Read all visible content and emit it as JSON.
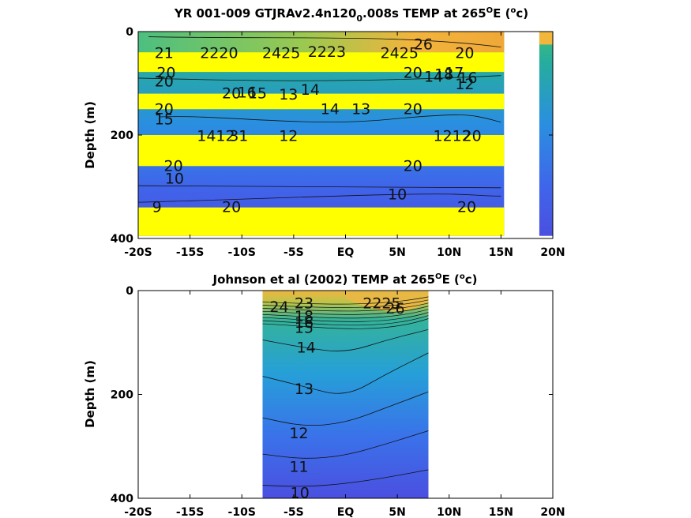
{
  "chart_data": [
    {
      "type": "contour",
      "title": "YR 001-009 GTJRAv2.4n120",
      "title_sub": "0",
      "title_tail": ".008s TEMP at 265",
      "title_deg": "O",
      "title_unit": "E (",
      "title_unit_sup": "o",
      "title_end": "c)",
      "ylabel": "Depth (m)",
      "xlabel": "",
      "xlim": [
        -20,
        20
      ],
      "ylim": [
        400,
        0
      ],
      "xticks": [
        -20,
        -15,
        -10,
        -5,
        0,
        5,
        10,
        15,
        20
      ],
      "xtick_labels": [
        "-20S",
        "-15S",
        "-10S",
        "-5S",
        "EQ",
        "5N",
        "10N",
        "15N",
        "20N"
      ],
      "yticks": [
        0,
        200,
        400
      ],
      "ytick_labels": [
        "0",
        "200",
        "400"
      ],
      "colors": {
        "warm": "#f2b63c",
        "mid": "#2bb09a",
        "cool": "#3a78e6",
        "deep": "#4a4fe0",
        "artifact": "#ffff00"
      },
      "bands": [
        {
          "y0": 0,
          "y1": 40,
          "kind": "field"
        },
        {
          "y0": 40,
          "y1": 78,
          "kind": "artifact"
        },
        {
          "y0": 78,
          "y1": 120,
          "kind": "field"
        },
        {
          "y0": 120,
          "y1": 150,
          "kind": "artifact"
        },
        {
          "y0": 150,
          "y1": 200,
          "kind": "field"
        },
        {
          "y0": 200,
          "y1": 260,
          "kind": "artifact"
        },
        {
          "y0": 260,
          "y1": 340,
          "kind": "field"
        },
        {
          "y0": 340,
          "y1": 395,
          "kind": "artifact"
        }
      ],
      "contour_labels": [
        {
          "x": -17.5,
          "y": 42,
          "text": "21"
        },
        {
          "x": -12.2,
          "y": 42,
          "text": "2220"
        },
        {
          "x": -6.2,
          "y": 42,
          "text": "2425"
        },
        {
          "x": -1.8,
          "y": 40,
          "text": "2223"
        },
        {
          "x": 5.2,
          "y": 42,
          "text": "2425"
        },
        {
          "x": 7.5,
          "y": 25,
          "text": "26"
        },
        {
          "x": 11.5,
          "y": 42,
          "text": "20"
        },
        {
          "x": -17.3,
          "y": 80,
          "text": "20"
        },
        {
          "x": 6.5,
          "y": 80,
          "text": "20"
        },
        {
          "x": 9.5,
          "y": 83,
          "text": "18"
        },
        {
          "x": 8.5,
          "y": 88,
          "text": "14"
        },
        {
          "x": 10.5,
          "y": 80,
          "text": "17"
        },
        {
          "x": 11.8,
          "y": 90,
          "text": "16"
        },
        {
          "x": -17.5,
          "y": 97,
          "text": "20"
        },
        {
          "x": -11,
          "y": 120,
          "text": "20"
        },
        {
          "x": -9.5,
          "y": 118,
          "text": "16"
        },
        {
          "x": -8.5,
          "y": 120,
          "text": "15"
        },
        {
          "x": -5.5,
          "y": 122,
          "text": "13"
        },
        {
          "x": -3.4,
          "y": 113,
          "text": "14"
        },
        {
          "x": 11.5,
          "y": 102,
          "text": "12"
        },
        {
          "x": -17.5,
          "y": 150,
          "text": "20"
        },
        {
          "x": -17.5,
          "y": 170,
          "text": "15"
        },
        {
          "x": -1.5,
          "y": 150,
          "text": "14"
        },
        {
          "x": 1.5,
          "y": 150,
          "text": "13"
        },
        {
          "x": 6.5,
          "y": 150,
          "text": "20"
        },
        {
          "x": -12.5,
          "y": 202,
          "text": "1412"
        },
        {
          "x": -10.3,
          "y": 202,
          "text": "31"
        },
        {
          "x": -5.5,
          "y": 202,
          "text": "12"
        },
        {
          "x": 10.3,
          "y": 202,
          "text": "1212"
        },
        {
          "x": 12.2,
          "y": 202,
          "text": "20"
        },
        {
          "x": -16.6,
          "y": 260,
          "text": "20"
        },
        {
          "x": 6.5,
          "y": 260,
          "text": "20"
        },
        {
          "x": -16.5,
          "y": 285,
          "text": "10"
        },
        {
          "x": 5,
          "y": 315,
          "text": "10"
        },
        {
          "x": -18.2,
          "y": 340,
          "text": "9"
        },
        {
          "x": -11,
          "y": 340,
          "text": "20"
        },
        {
          "x": 11.7,
          "y": 340,
          "text": "20"
        }
      ]
    },
    {
      "type": "contour",
      "title": "Johnson et al (2002) TEMP at 265",
      "title_deg": "O",
      "title_unit": "E (",
      "title_unit_sup": "o",
      "title_end": "c)",
      "ylabel": "Depth (m)",
      "xlabel": "",
      "xlim": [
        -20,
        20
      ],
      "ylim": [
        400,
        0
      ],
      "data_xrange": [
        -8,
        8
      ],
      "xticks": [
        -20,
        -15,
        -10,
        -5,
        0,
        5,
        10,
        15,
        20
      ],
      "xtick_labels": [
        "-20S",
        "-15S",
        "-10S",
        "-5S",
        "EQ",
        "5N",
        "10N",
        "15N",
        "20N"
      ],
      "yticks": [
        0,
        200,
        400
      ],
      "ytick_labels": [
        "0",
        "200",
        "400"
      ],
      "contour_levels": [
        10,
        11,
        12,
        13,
        14,
        15,
        16,
        17,
        18,
        19,
        20,
        21,
        22,
        23,
        24,
        25,
        26,
        27
      ],
      "isotherm_depths": [
        {
          "level": 10,
          "x": [
            -8,
            -4,
            0,
            4,
            8
          ],
          "y": [
            375,
            378,
            372,
            360,
            345
          ]
        },
        {
          "level": 11,
          "x": [
            -8,
            -4,
            0,
            4,
            8
          ],
          "y": [
            315,
            325,
            318,
            295,
            270
          ]
        },
        {
          "level": 12,
          "x": [
            -8,
            -4,
            0,
            4,
            8
          ],
          "y": [
            245,
            262,
            255,
            225,
            195
          ]
        },
        {
          "level": 13,
          "x": [
            -8,
            -4,
            0,
            4,
            8
          ],
          "y": [
            165,
            185,
            205,
            160,
            120
          ]
        },
        {
          "level": 14,
          "x": [
            -8,
            -4,
            0,
            4,
            8
          ],
          "y": [
            95,
            110,
            120,
            95,
            75
          ]
        }
      ],
      "contour_labels": [
        {
          "x": -6.4,
          "y": 32,
          "text": "24"
        },
        {
          "x": -4,
          "y": 25,
          "text": "23"
        },
        {
          "x": 3.5,
          "y": 25,
          "text": "2225"
        },
        {
          "x": 4.8,
          "y": 35,
          "text": "26"
        },
        {
          "x": -4.0,
          "y": 50,
          "text": "18"
        },
        {
          "x": -4.0,
          "y": 62,
          "text": "16"
        },
        {
          "x": -4.0,
          "y": 72,
          "text": "15"
        },
        {
          "x": -3.8,
          "y": 110,
          "text": "14"
        },
        {
          "x": -4.0,
          "y": 190,
          "text": "13"
        },
        {
          "x": -4.5,
          "y": 275,
          "text": "12"
        },
        {
          "x": -4.5,
          "y": 340,
          "text": "11"
        },
        {
          "x": -4.4,
          "y": 390,
          "text": "10"
        }
      ]
    }
  ]
}
